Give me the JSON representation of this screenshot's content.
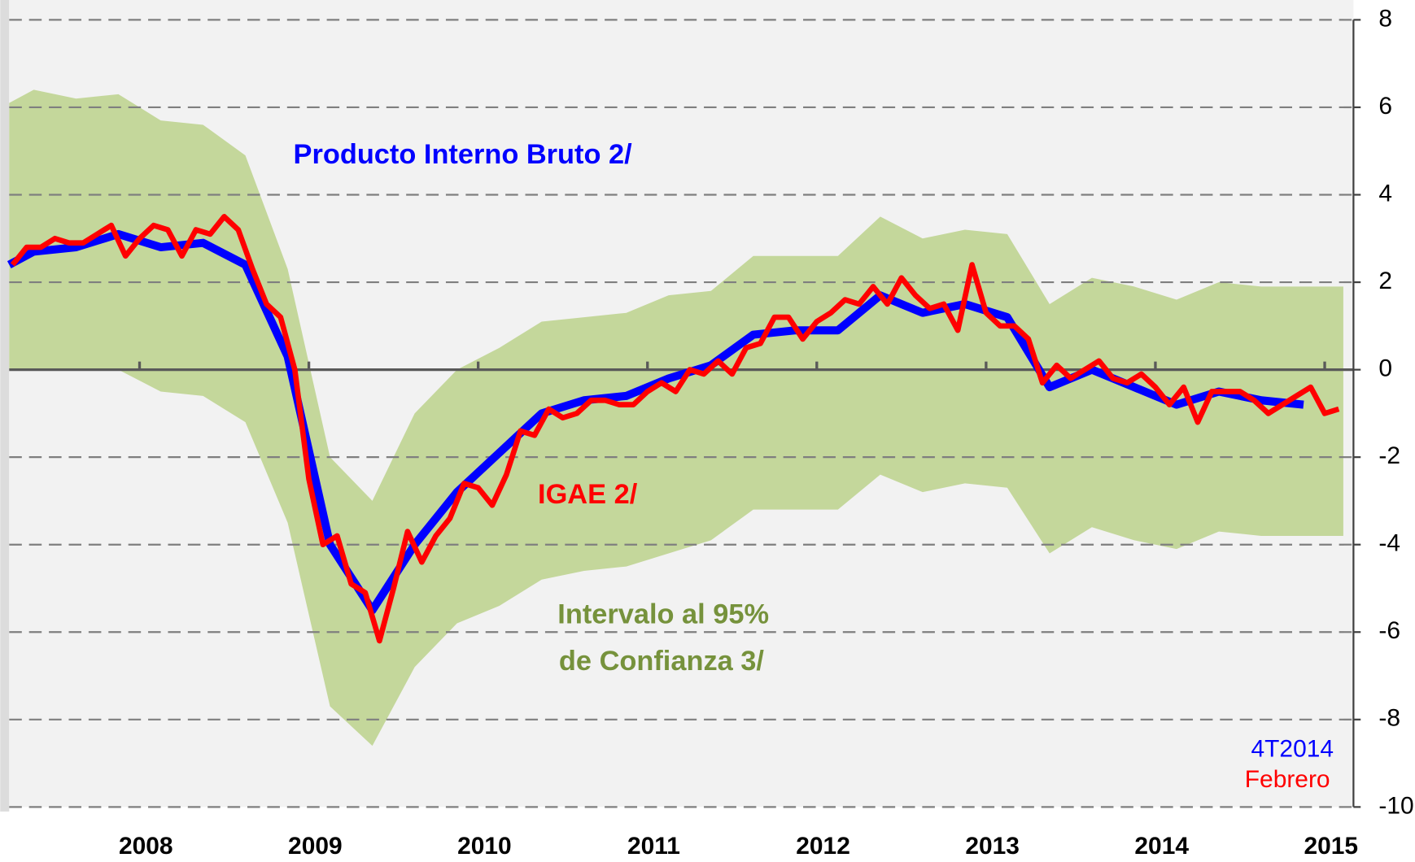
{
  "chart_data": {
    "type": "line",
    "xlim": [
      2007.23,
      2015.17
    ],
    "xticks": [
      2008,
      2009,
      2010,
      2011,
      2012,
      2013,
      2014,
      2015
    ],
    "ylim": [
      -10,
      8
    ],
    "yticks": [
      8,
      6,
      4,
      2,
      0,
      -2,
      -4,
      -6,
      -8,
      -10
    ],
    "grid": true,
    "band": {
      "labels": [
        "Intervalo al 95%",
        "de Confianza 3/"
      ],
      "color": "#c4d79b",
      "label_color": "#76923c",
      "x": [
        2007.23,
        2007.375,
        2007.625,
        2007.875,
        2008.125,
        2008.375,
        2008.625,
        2008.875,
        2009.125,
        2009.375,
        2009.625,
        2009.875,
        2010.125,
        2010.375,
        2010.625,
        2010.875,
        2011.125,
        2011.375,
        2011.625,
        2011.875,
        2012.125,
        2012.375,
        2012.625,
        2012.875,
        2013.125,
        2013.375,
        2013.625,
        2013.875,
        2014.125,
        2014.375,
        2014.625,
        2014.875,
        2015.11
      ],
      "upper": [
        6.1,
        6.4,
        6.2,
        6.3,
        5.7,
        5.6,
        4.9,
        2.3,
        -2.0,
        -3.0,
        -1.0,
        0.0,
        0.5,
        1.1,
        1.2,
        1.3,
        1.7,
        1.8,
        2.6,
        2.6,
        2.6,
        3.5,
        3.0,
        3.2,
        3.1,
        1.5,
        2.1,
        1.9,
        1.6,
        2.0,
        1.9,
        1.9,
        1.9
      ],
      "lower": [
        0.0,
        0.0,
        0.0,
        0.0,
        -0.5,
        -0.6,
        -1.2,
        -3.5,
        -7.7,
        -8.6,
        -6.8,
        -5.8,
        -5.4,
        -4.8,
        -4.6,
        -4.5,
        -4.2,
        -3.9,
        -3.2,
        -3.2,
        -3.2,
        -2.4,
        -2.8,
        -2.6,
        -2.7,
        -4.2,
        -3.6,
        -3.9,
        -4.1,
        -3.7,
        -3.8,
        -3.8,
        -3.8
      ]
    },
    "series": [
      {
        "name": "Producto Interno Bruto 2/",
        "color": "#0000ff",
        "x": [
          2007.23,
          2007.375,
          2007.625,
          2007.875,
          2008.125,
          2008.375,
          2008.625,
          2008.875,
          2009.125,
          2009.375,
          2009.625,
          2009.875,
          2010.125,
          2010.375,
          2010.625,
          2010.875,
          2011.125,
          2011.375,
          2011.625,
          2011.875,
          2012.125,
          2012.375,
          2012.625,
          2012.875,
          2013.125,
          2013.375,
          2013.625,
          2013.875,
          2014.125,
          2014.375,
          2014.625,
          2014.875
        ],
        "values": [
          2.4,
          2.7,
          2.8,
          3.1,
          2.8,
          2.9,
          2.4,
          0.3,
          -4.0,
          -5.5,
          -4.0,
          -2.8,
          -1.9,
          -1.0,
          -0.7,
          -0.6,
          -0.2,
          0.1,
          0.8,
          0.9,
          0.9,
          1.7,
          1.3,
          1.5,
          1.2,
          -0.4,
          0.0,
          -0.4,
          -0.8,
          -0.5,
          -0.7,
          -0.8
        ]
      },
      {
        "name": "IGAE 2/",
        "color": "#ff0000",
        "x": [
          2007.25,
          2007.333,
          2007.417,
          2007.5,
          2007.583,
          2007.667,
          2007.75,
          2007.833,
          2007.917,
          2008.0,
          2008.083,
          2008.167,
          2008.25,
          2008.333,
          2008.417,
          2008.5,
          2008.583,
          2008.667,
          2008.75,
          2008.833,
          2008.917,
          2009.0,
          2009.083,
          2009.167,
          2009.25,
          2009.333,
          2009.417,
          2009.5,
          2009.583,
          2009.667,
          2009.75,
          2009.833,
          2009.917,
          2010.0,
          2010.083,
          2010.167,
          2010.25,
          2010.333,
          2010.417,
          2010.5,
          2010.583,
          2010.667,
          2010.75,
          2010.833,
          2010.917,
          2011.0,
          2011.083,
          2011.167,
          2011.25,
          2011.333,
          2011.417,
          2011.5,
          2011.583,
          2011.667,
          2011.75,
          2011.833,
          2011.917,
          2012.0,
          2012.083,
          2012.167,
          2012.25,
          2012.333,
          2012.417,
          2012.5,
          2012.583,
          2012.667,
          2012.75,
          2012.833,
          2012.917,
          2013.0,
          2013.083,
          2013.167,
          2013.25,
          2013.333,
          2013.417,
          2013.5,
          2013.583,
          2013.667,
          2013.75,
          2013.833,
          2013.917,
          2014.0,
          2014.083,
          2014.167,
          2014.25,
          2014.333,
          2014.417,
          2014.5,
          2014.583,
          2014.667,
          2014.75,
          2014.833,
          2014.917,
          2015.0,
          2015.083
        ],
        "values": [
          2.4,
          2.8,
          2.8,
          3.0,
          2.9,
          2.9,
          3.1,
          3.3,
          2.6,
          3.0,
          3.3,
          3.2,
          2.6,
          3.2,
          3.1,
          3.5,
          3.2,
          2.3,
          1.5,
          1.2,
          0.0,
          -2.5,
          -4.0,
          -3.8,
          -4.9,
          -5.1,
          -6.2,
          -5.0,
          -3.7,
          -4.4,
          -3.8,
          -3.4,
          -2.6,
          -2.7,
          -3.1,
          -2.4,
          -1.4,
          -1.5,
          -0.9,
          -1.1,
          -1.0,
          -0.7,
          -0.7,
          -0.8,
          -0.8,
          -0.5,
          -0.3,
          -0.5,
          0.0,
          -0.1,
          0.2,
          -0.1,
          0.5,
          0.6,
          1.2,
          1.2,
          0.7,
          1.1,
          1.3,
          1.6,
          1.5,
          1.9,
          1.5,
          2.1,
          1.7,
          1.4,
          1.5,
          0.9,
          2.4,
          1.3,
          1.0,
          1.0,
          0.7,
          -0.3,
          0.1,
          -0.2,
          0.0,
          0.2,
          -0.2,
          -0.3,
          -0.1,
          -0.4,
          -0.8,
          -0.4,
          -1.2,
          -0.5,
          -0.5,
          -0.5,
          -0.7,
          -1.0,
          -0.8,
          -0.6,
          -0.4,
          -1.0,
          -0.9
        ]
      }
    ],
    "annotations": [
      {
        "text": "4T2014",
        "color": "#0000ff"
      },
      {
        "text": "Febrero",
        "color": "#ff0000"
      }
    ]
  }
}
